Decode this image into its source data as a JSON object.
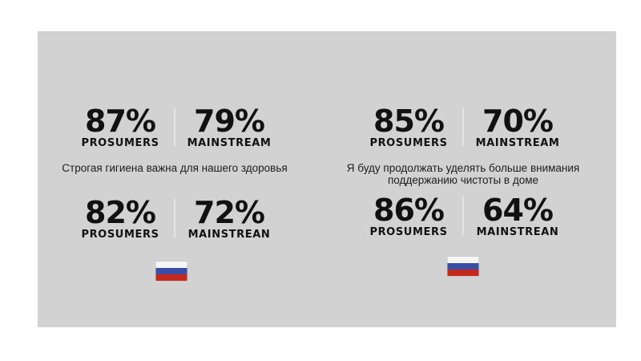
{
  "colors": {
    "page-bg": "#ffffff",
    "card-bg": "#d2d2d2",
    "text": "#111111",
    "caption-text": "#1c1c1c",
    "divider": "#e4e4e4",
    "flag-white": "#f5f5f5",
    "flag-blue": "#3a4ea6",
    "flag-red": "#c5291d"
  },
  "groups": [
    {
      "top_row": {
        "prosumers": {
          "value": "87%",
          "label": "PROSUMERS"
        },
        "mainstream": {
          "value": "79%",
          "label": "MAINSTREAM"
        }
      },
      "caption_lines": [
        "Строгая гигиена важна для нашего здоровья"
      ],
      "bottom_row": {
        "prosumers": {
          "value": "82%",
          "label": "PROSUMERS"
        },
        "mainstream": {
          "value": "72%",
          "label": "MAINSTREAN"
        }
      },
      "flag": "russia"
    },
    {
      "top_row": {
        "prosumers": {
          "value": "85%",
          "label": "PROSUMERS"
        },
        "mainstream": {
          "value": "70%",
          "label": "MAINSTREAM"
        }
      },
      "caption_lines": [
        "Я буду продолжать уделять больше внимания",
        "поддержанию чистоты в доме"
      ],
      "bottom_row": {
        "prosumers": {
          "value": "86%",
          "label": "PROSUMERS"
        },
        "mainstream": {
          "value": "64%",
          "label": "MAINSTREAN"
        }
      },
      "flag": "russia"
    }
  ],
  "chart_data": {
    "type": "table",
    "title": "",
    "panels": [
      {
        "statement": "Строгая гигиена важна для нашего здоровья",
        "country": "russia",
        "rows": [
          {
            "row": "top",
            "PROSUMERS": 87,
            "MAINSTREAM": 79
          },
          {
            "row": "bottom",
            "PROSUMERS": 82,
            "MAINSTREAM": 72
          }
        ]
      },
      {
        "statement": "Я буду продолжать уделять больше внимания поддержанию чистоты в доме",
        "country": "russia",
        "rows": [
          {
            "row": "top",
            "PROSUMERS": 85,
            "MAINSTREAM": 70
          },
          {
            "row": "bottom",
            "PROSUMERS": 86,
            "MAINSTREAM": 64
          }
        ]
      }
    ],
    "unit": "percent",
    "legend_position": "inline-labels",
    "grid": false
  }
}
